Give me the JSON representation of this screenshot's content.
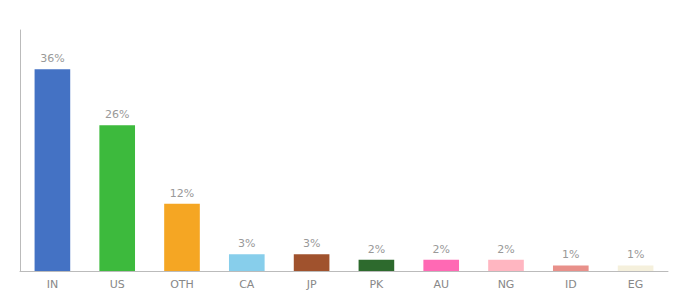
{
  "chart_data": {
    "type": "bar",
    "categories": [
      "IN",
      "US",
      "OTH",
      "CA",
      "JP",
      "PK",
      "AU",
      "NG",
      "ID",
      "EG"
    ],
    "values": [
      36,
      26,
      12,
      3,
      3,
      2,
      2,
      2,
      1,
      1
    ],
    "value_labels": [
      "36%",
      "26%",
      "12%",
      "3%",
      "3%",
      "2%",
      "2%",
      "2%",
      "1%",
      "1%"
    ],
    "colors": [
      "#4472c4",
      "#3dba3d",
      "#f5a623",
      "#87ceeb",
      "#a0522d",
      "#2d6a2d",
      "#ff69b4",
      "#ffb6c1",
      "#e8908a",
      "#f5f0dc"
    ],
    "ylim": [
      0,
      43
    ],
    "grid": false,
    "data_labels": true,
    "tick_labels": "x"
  }
}
